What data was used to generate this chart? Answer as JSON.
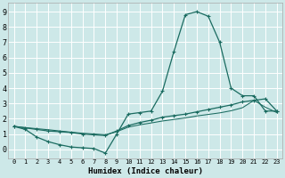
{
  "xlabel": "Humidex (Indice chaleur)",
  "ylabel": "",
  "bg_color": "#cde8e8",
  "grid_color": "#b0d8d8",
  "line_color": "#1a6b60",
  "xlim": [
    -0.5,
    23.5
  ],
  "ylim": [
    -0.6,
    9.6
  ],
  "xticks": [
    0,
    1,
    2,
    3,
    4,
    5,
    6,
    7,
    8,
    9,
    10,
    11,
    12,
    13,
    14,
    15,
    16,
    17,
    18,
    19,
    20,
    21,
    22,
    23
  ],
  "yticks": [
    0,
    1,
    2,
    3,
    4,
    5,
    6,
    7,
    8,
    9
  ],
  "series": {
    "line1_x": [
      0,
      1,
      2,
      3,
      4,
      5,
      6,
      7,
      8,
      9,
      10,
      11,
      12,
      13,
      14,
      15,
      16,
      17,
      18,
      19,
      20,
      21,
      22,
      23
    ],
    "line1_y": [
      1.5,
      1.3,
      0.8,
      0.5,
      0.3,
      0.15,
      0.1,
      0.05,
      -0.25,
      1.0,
      2.3,
      2.4,
      2.5,
      3.8,
      6.4,
      8.8,
      9.0,
      8.7,
      7.0,
      4.0,
      3.5,
      3.5,
      2.5,
      2.5
    ],
    "line2_x": [
      0,
      1,
      2,
      3,
      4,
      5,
      6,
      7,
      8,
      9,
      10,
      11,
      12,
      13,
      14,
      15,
      16,
      17,
      18,
      19,
      20,
      21,
      22,
      23
    ],
    "line2_y": [
      1.5,
      1.4,
      1.3,
      1.2,
      1.15,
      1.1,
      1.0,
      0.95,
      0.9,
      1.2,
      1.55,
      1.75,
      1.9,
      2.1,
      2.2,
      2.3,
      2.45,
      2.6,
      2.75,
      2.9,
      3.1,
      3.2,
      3.3,
      2.5
    ],
    "line3_x": [
      0,
      1,
      2,
      3,
      4,
      5,
      6,
      7,
      8,
      9,
      10,
      11,
      12,
      13,
      14,
      15,
      16,
      17,
      18,
      19,
      20,
      21,
      22,
      23
    ],
    "line3_y": [
      1.5,
      1.42,
      1.35,
      1.28,
      1.2,
      1.12,
      1.05,
      1.0,
      0.95,
      1.15,
      1.45,
      1.6,
      1.72,
      1.85,
      1.95,
      2.05,
      2.18,
      2.28,
      2.38,
      2.52,
      2.72,
      3.2,
      2.75,
      2.4
    ]
  }
}
